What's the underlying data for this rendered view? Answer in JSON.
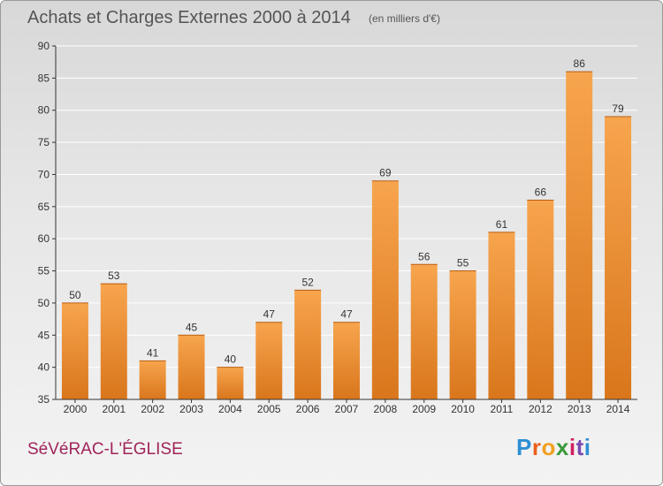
{
  "header": {
    "title": "Achats et Charges Externes 2000 à 2014",
    "unit": "(en milliers d'€)"
  },
  "commune": "SéVéRAC-L'ÉGLISE",
  "logo": {
    "letters": [
      "P",
      "r",
      "o",
      "x",
      "i",
      "t",
      "i"
    ],
    "colors": [
      "#2e8fd4",
      "#e8601c",
      "#f0a020",
      "#3a9a3a",
      "#d02060",
      "#7a4ab0",
      "#2e8fd4"
    ]
  },
  "colors": {
    "bar_light": "#f7a54e",
    "bar_dark": "#d9761c",
    "grid": "#ffffff",
    "axis": "#333333"
  },
  "chart_data": {
    "type": "bar",
    "title": "Achats et Charges Externes 2000 à 2014",
    "subtitle": "(en milliers d'€)",
    "categories": [
      "2000",
      "2001",
      "2002",
      "2003",
      "2004",
      "2005",
      "2006",
      "2007",
      "2008",
      "2009",
      "2010",
      "2011",
      "2012",
      "2013",
      "2014"
    ],
    "values": [
      50,
      53,
      41,
      45,
      40,
      47,
      52,
      47,
      69,
      56,
      55,
      61,
      66,
      86,
      79
    ],
    "ylim": [
      35,
      90
    ],
    "yticks": [
      35,
      40,
      45,
      50,
      55,
      60,
      65,
      70,
      75,
      80,
      85,
      90
    ],
    "grid": true,
    "xlabel": "",
    "ylabel": ""
  }
}
